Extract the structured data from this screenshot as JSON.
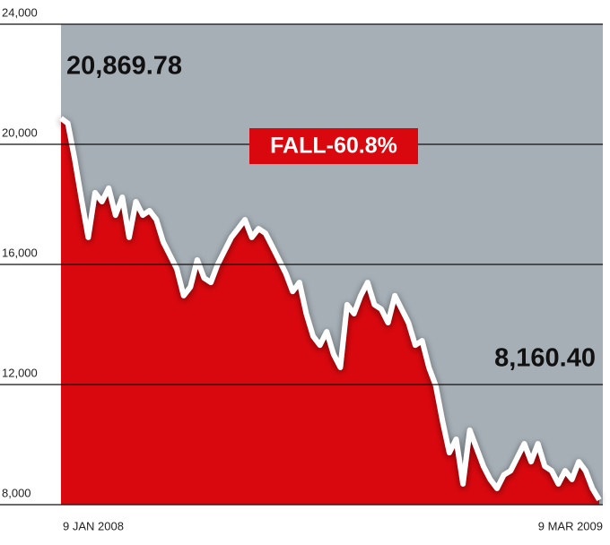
{
  "chart_data": {
    "type": "area",
    "categories": [
      "9 JAN 2008",
      null,
      null,
      null,
      null,
      null,
      null,
      null,
      null,
      null,
      null,
      null,
      null,
      null,
      null,
      null,
      null,
      null,
      null,
      null,
      null,
      null,
      null,
      null,
      null,
      null,
      null,
      null,
      null,
      null,
      null,
      null,
      null,
      null,
      null,
      null,
      null,
      null,
      null,
      null,
      null,
      null,
      null,
      null,
      null,
      null,
      null,
      null,
      null,
      null,
      null,
      null,
      null,
      null,
      null,
      null,
      null,
      null,
      null,
      null,
      null,
      null,
      null,
      null,
      null,
      null,
      null,
      null,
      null,
      null,
      null,
      null,
      null,
      null,
      null,
      null,
      null,
      null,
      null,
      "9 MAR 2009"
    ],
    "values": [
      20870,
      20700,
      19520,
      18180,
      16900,
      18390,
      18090,
      18540,
      17640,
      18240,
      16900,
      18090,
      17640,
      17790,
      17490,
      16750,
      16300,
      15850,
      14960,
      15250,
      16150,
      15550,
      15400,
      16000,
      16450,
      16900,
      17190,
      17490,
      16900,
      17190,
      17040,
      16600,
      16150,
      15700,
      15100,
      15400,
      14360,
      13610,
      13310,
      13760,
      13010,
      12570,
      14660,
      14360,
      14960,
      15400,
      14660,
      14510,
      14060,
      14960,
      14510,
      14060,
      13310,
      13460,
      12570,
      11970,
      10780,
      9730,
      10180,
      8690,
      10480,
      9880,
      9280,
      8840,
      8540,
      8990,
      9130,
      9580,
      10030,
      9430,
      10030,
      9280,
      9130,
      8690,
      9130,
      8840,
      9430,
      9130,
      8540,
      8160
    ],
    "color": "#d9080e",
    "line_color": "#ffffff",
    "background_color": "#a6afb6",
    "ylim": [
      8000,
      24000
    ],
    "yticks": [
      {
        "value": 8000,
        "label": "8,000"
      },
      {
        "value": 12000,
        "label": "12,000"
      },
      {
        "value": 16000,
        "label": "16,000"
      },
      {
        "value": 20000,
        "label": "20,000"
      },
      {
        "value": 24000,
        "label": "24,000"
      }
    ],
    "grid": true,
    "annotations": [
      "20,869.78",
      "FALL-60.8%",
      "8,160.40"
    ]
  }
}
